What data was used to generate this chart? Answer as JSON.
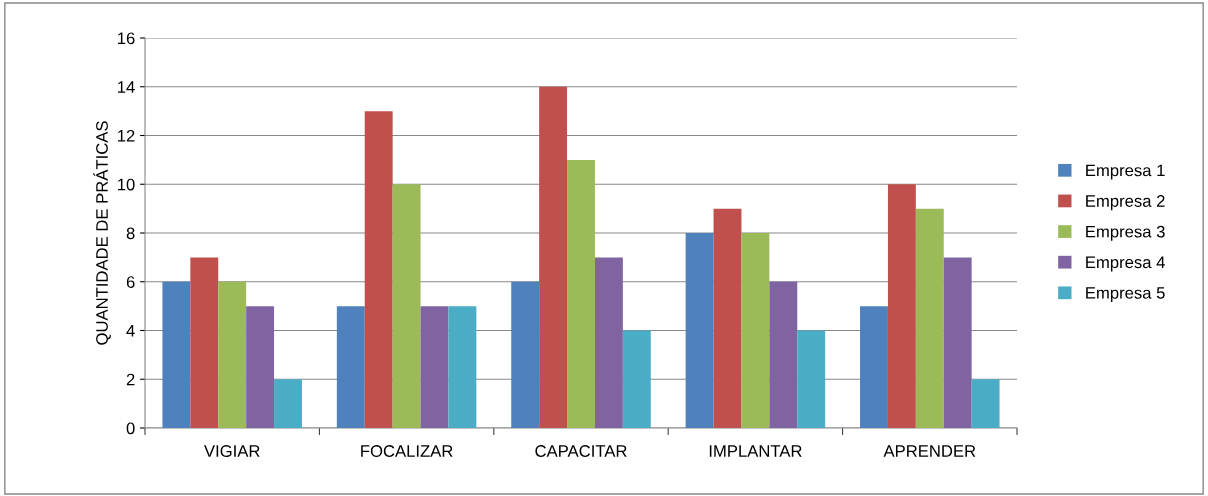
{
  "chart_data": {
    "type": "bar",
    "ylabel": "QUANTIDADE DE PRÁTICAS",
    "categories": [
      "VIGIAR",
      "FOCALIZAR",
      "CAPACITAR",
      "IMPLANTAR",
      "APRENDER"
    ],
    "series": [
      {
        "name": "Empresa 1",
        "color": "#4f81bd",
        "values": [
          6,
          5,
          6,
          8,
          5
        ]
      },
      {
        "name": "Empresa 2",
        "color": "#c0504d",
        "values": [
          7,
          13,
          14,
          9,
          10
        ]
      },
      {
        "name": "Empresa 3",
        "color": "#9bbb59",
        "values": [
          6,
          10,
          11,
          8,
          9
        ]
      },
      {
        "name": "Empresa 4",
        "color": "#8064a2",
        "values": [
          5,
          5,
          7,
          6,
          7
        ]
      },
      {
        "name": "Empresa 5",
        "color": "#4bacc6",
        "values": [
          2,
          5,
          4,
          4,
          2
        ]
      }
    ],
    "ylim": [
      0,
      16
    ],
    "yticks": [
      0,
      2,
      4,
      6,
      8,
      10,
      12,
      14,
      16
    ],
    "grid": "y",
    "legend": "right"
  }
}
